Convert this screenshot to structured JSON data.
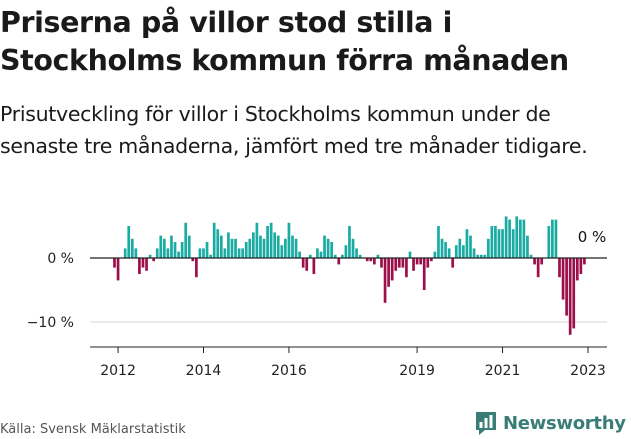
{
  "header": {
    "title": "Priserna på villor stod stilla i Stockholms kommun förra månaden",
    "subtitle": "Prisutveckling för villor i Stockholms kommun under de senaste tre månaderna, jämfört med tre månader tidigare."
  },
  "footer": {
    "source": "Källa: Svensk Mäklarstatistik",
    "brand": "Newsworthy"
  },
  "colors": {
    "positive": "#1aaba2",
    "negative": "#9c0f4a",
    "zero_line": "#222222",
    "gridline": "#d5d5d5",
    "brand": "#3a7d76"
  },
  "chart_data": {
    "type": "bar",
    "title": "",
    "xlabel": "",
    "ylabel": "",
    "x_start": "2011-12",
    "x_unit": "month",
    "x_ticks": [
      "2012",
      "2014",
      "2016",
      "2019",
      "2021",
      "2023"
    ],
    "y_ticks": [
      0,
      -10
    ],
    "y_tick_labels": [
      "0 %",
      "−10 %"
    ],
    "ylim": [
      -14,
      6.5
    ],
    "grid": true,
    "end_label": "0 %",
    "values": [
      -1.5,
      -3.5,
      0,
      1.5,
      5,
      3,
      1.5,
      -2.5,
      -1.5,
      -2,
      0.5,
      -0.5,
      1.5,
      3.5,
      3,
      1.5,
      3.5,
      2.5,
      1,
      2.5,
      5.5,
      3.5,
      -0.5,
      -3,
      1.5,
      1.5,
      2.5,
      0.5,
      5.5,
      4.5,
      3.5,
      1.5,
      4,
      3,
      3,
      1.5,
      1.5,
      2.5,
      3,
      4,
      5.5,
      3.5,
      3,
      5,
      5.5,
      4,
      3.5,
      2,
      3,
      5.5,
      3.5,
      3,
      1,
      -1.5,
      -2,
      0.5,
      -2.5,
      1.5,
      1,
      3.5,
      3,
      2.5,
      0.5,
      -1,
      0.5,
      2,
      5,
      3,
      1.5,
      0.5,
      0,
      -0.5,
      -0.5,
      -1,
      0.5,
      -1.5,
      -7,
      -4.5,
      -3.5,
      -2,
      -1.5,
      -1.5,
      -3,
      1,
      -2,
      -1,
      -1,
      -5,
      -1.5,
      -0.5,
      1,
      5,
      3,
      2.5,
      1.5,
      -1.5,
      2,
      3,
      2,
      4.5,
      3.5,
      1.5,
      0.5,
      0.5,
      0.5,
      3,
      5,
      5,
      4.5,
      4.5,
      6.5,
      6,
      4.5,
      6.5,
      6,
      6,
      3.5,
      0.5,
      -1,
      -3,
      -1,
      0,
      5,
      6,
      6,
      -3,
      -6.5,
      -9,
      -12,
      -11,
      -3.5,
      -2.5,
      -1,
      0
    ]
  }
}
